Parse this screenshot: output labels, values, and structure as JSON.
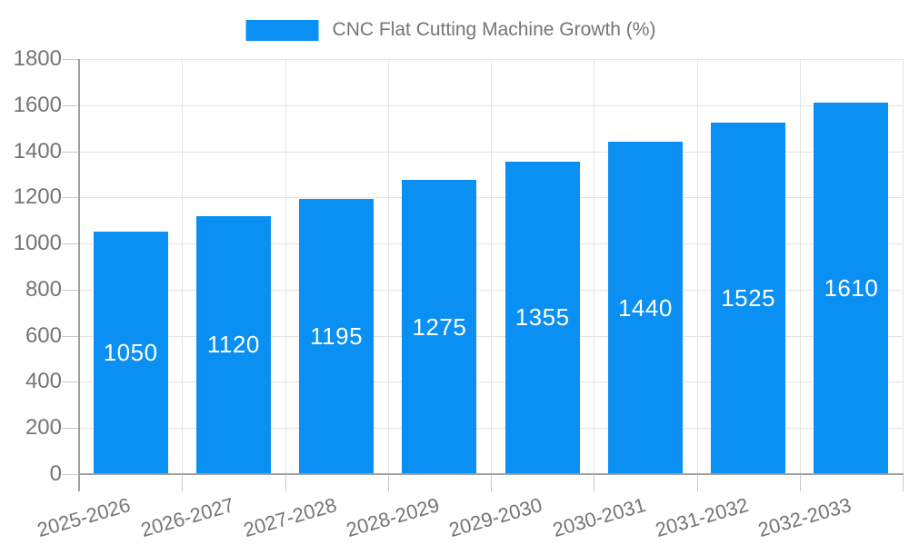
{
  "legend": {
    "label": "CNC Flat Cutting Machine Growth (%)"
  },
  "chart_data": {
    "type": "bar",
    "title": "CNC Flat Cutting Machine Growth (%)",
    "legend_entries": [
      "CNC Flat Cutting Machine Growth (%)"
    ],
    "legend_position": "top-center",
    "categories": [
      "2025-2026",
      "2026-2027",
      "2027-2028",
      "2028-2029",
      "2029-2030",
      "2030-2031",
      "2031-2032",
      "2032-2033"
    ],
    "values": [
      1050,
      1120,
      1195,
      1275,
      1355,
      1440,
      1525,
      1610
    ],
    "xlabel": "",
    "ylabel": "",
    "ylim": [
      0,
      1800
    ],
    "yticks": [
      0,
      200,
      400,
      600,
      800,
      1000,
      1200,
      1400,
      1600,
      1800
    ],
    "grid": true,
    "vertical_category_separators": true,
    "bar_value_labels_visible": true,
    "x_label_rotation_deg": -16,
    "colors": {
      "bar": "#0a8ff2",
      "bar_label_text": "#ffffff",
      "grid": "#e3e3e3",
      "tick": "#c9c9c9",
      "axis_line": "#a0a0a0",
      "axis_text": "#757575",
      "background": "#ffffff"
    }
  }
}
